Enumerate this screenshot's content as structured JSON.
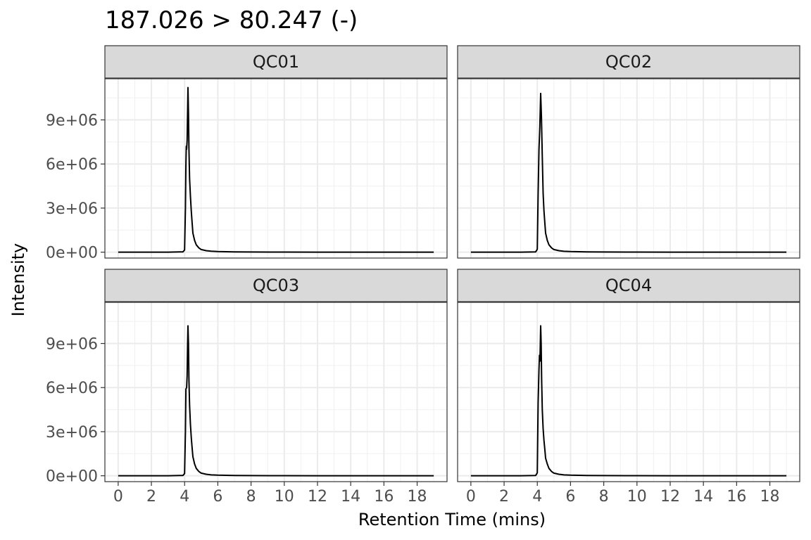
{
  "chart_data": {
    "type": "line",
    "title": "187.026 > 80.247 (-)",
    "xlabel": "Retention Time (mins)",
    "ylabel": "Intensity",
    "xlim": [
      -0.8,
      19.8
    ],
    "ylim": [
      -400000,
      11800000
    ],
    "x_ticks": [
      0,
      2,
      4,
      6,
      8,
      10,
      12,
      14,
      16,
      18
    ],
    "x_tick_labels": [
      "0",
      "2",
      "4",
      "6",
      "8",
      "10",
      "12",
      "14",
      "16",
      "18"
    ],
    "y_ticks": [
      0,
      3000000,
      6000000,
      9000000
    ],
    "y_tick_labels": [
      "0e+00",
      "3e+06",
      "6e+06",
      "9e+06"
    ],
    "grid": true,
    "layout": "facet-wrap 2x2",
    "line_color": "#000000",
    "panels": [
      {
        "name": "QC01",
        "series": [
          {
            "x": [
              0.0,
              3.0,
              3.9,
              4.0,
              4.05,
              4.08,
              4.1,
              4.12,
              4.15,
              4.18,
              4.2,
              4.23,
              4.26,
              4.3,
              4.35,
              4.4,
              4.45,
              4.5,
              4.6,
              4.7,
              4.85,
              5.0,
              5.3,
              5.6,
              6.0,
              7.0,
              8.0,
              10.0,
              12.0,
              14.0,
              16.0,
              18.0,
              19.0
            ],
            "y": [
              0,
              0,
              20000,
              150000,
              3000000,
              6000000,
              7200000,
              7000000,
              7600000,
              9600000,
              11200000,
              9500000,
              7000000,
              5000000,
              3800000,
              2800000,
              2000000,
              1300000,
              800000,
              500000,
              300000,
              180000,
              100000,
              70000,
              40000,
              20000,
              10000,
              5000,
              3000,
              2000,
              1000,
              0,
              0
            ]
          }
        ]
      },
      {
        "name": "QC02",
        "series": [
          {
            "x": [
              0.0,
              3.0,
              3.9,
              4.0,
              4.05,
              4.1,
              4.15,
              4.2,
              4.25,
              4.3,
              4.35,
              4.4,
              4.45,
              4.5,
              4.6,
              4.7,
              4.85,
              5.0,
              5.3,
              5.6,
              6.0,
              7.0,
              8.0,
              10.0,
              12.0,
              14.0,
              16.0,
              18.0,
              19.0
            ],
            "y": [
              0,
              0,
              20000,
              200000,
              4000000,
              7000000,
              8500000,
              10800000,
              9200000,
              6500000,
              4000000,
              2800000,
              2000000,
              1300000,
              800000,
              500000,
              300000,
              180000,
              100000,
              60000,
              40000,
              20000,
              10000,
              5000,
              3000,
              2000,
              1000,
              0,
              0
            ]
          }
        ]
      },
      {
        "name": "QC03",
        "series": [
          {
            "x": [
              0.0,
              3.0,
              3.9,
              4.0,
              4.05,
              4.08,
              4.12,
              4.15,
              4.18,
              4.2,
              4.23,
              4.26,
              4.3,
              4.35,
              4.4,
              4.45,
              4.5,
              4.6,
              4.7,
              4.85,
              5.0,
              5.3,
              5.6,
              6.0,
              7.0,
              8.0,
              10.0,
              12.0,
              14.0,
              16.0,
              18.0,
              19.0
            ],
            "y": [
              0,
              0,
              20000,
              150000,
              3000000,
              5900000,
              6000000,
              6800000,
              9000000,
              10200000,
              9000000,
              6500000,
              4800000,
              3500000,
              2600000,
              1900000,
              1300000,
              800000,
              500000,
              300000,
              180000,
              100000,
              60000,
              40000,
              20000,
              10000,
              5000,
              3000,
              2000,
              1000,
              0,
              0
            ]
          }
        ]
      },
      {
        "name": "QC04",
        "series": [
          {
            "x": [
              0.0,
              3.0,
              3.9,
              4.0,
              4.05,
              4.1,
              4.13,
              4.16,
              4.2,
              4.23,
              4.26,
              4.3,
              4.35,
              4.4,
              4.45,
              4.5,
              4.6,
              4.7,
              4.85,
              5.0,
              5.3,
              5.6,
              6.0,
              7.0,
              8.0,
              10.0,
              12.0,
              14.0,
              16.0,
              18.0,
              19.0
            ],
            "y": [
              0,
              0,
              20000,
              200000,
              5000000,
              7200000,
              8200000,
              7800000,
              10200000,
              9000000,
              6500000,
              4500000,
              3200000,
              2400000,
              1800000,
              1200000,
              800000,
              500000,
              300000,
              180000,
              100000,
              60000,
              40000,
              20000,
              10000,
              5000,
              3000,
              2000,
              1000,
              0,
              0
            ]
          }
        ]
      }
    ]
  }
}
